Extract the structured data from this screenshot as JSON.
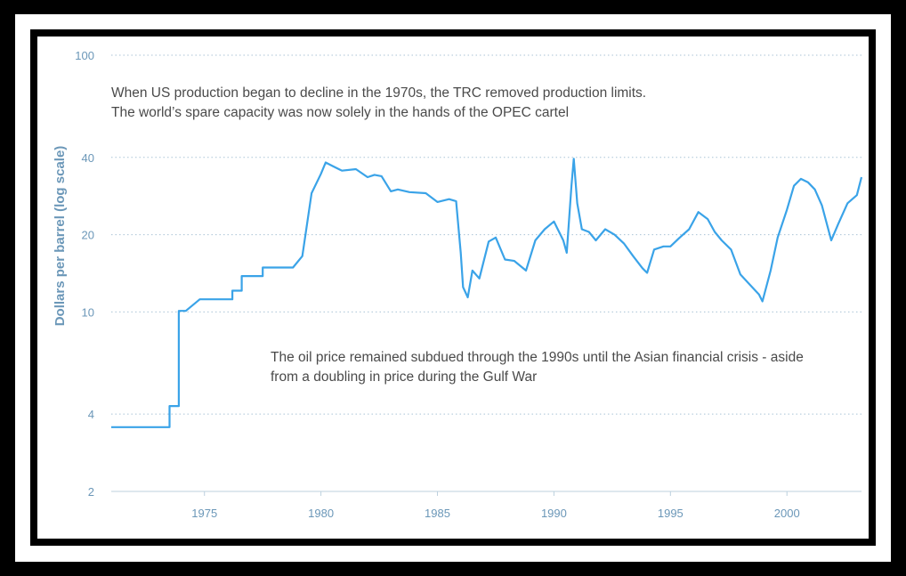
{
  "chart_data": {
    "type": "line",
    "title": "",
    "xlabel": "",
    "ylabel": "Dollars per barrel (log scale)",
    "y_scale": "log",
    "ylim": [
      2,
      100
    ],
    "xlim": [
      1971,
      2003.2
    ],
    "y_ticks": [
      2,
      4,
      10,
      20,
      40,
      100
    ],
    "x_ticks": [
      1975,
      1980,
      1985,
      1990,
      1995,
      2000
    ],
    "grid": "horizontal dotted",
    "line_color": "#3aa3e8",
    "axis_text_color": "#6b97b8",
    "series": [
      {
        "name": "",
        "x": [
          1971.0,
          1973.5,
          1973.5,
          1973.9,
          1973.9,
          1974.2,
          1974.8,
          1974.8,
          1976.2,
          1976.2,
          1976.6,
          1976.6,
          1977.5,
          1977.5,
          1978.8,
          1979.2,
          1979.6,
          1980.0,
          1980.2,
          1980.5,
          1980.9,
          1981.5,
          1982.0,
          1982.3,
          1982.6,
          1983.0,
          1983.3,
          1983.8,
          1984.5,
          1985.0,
          1985.5,
          1985.8,
          1986.0,
          1986.1,
          1986.3,
          1986.5,
          1986.8,
          1987.2,
          1987.5,
          1987.9,
          1988.3,
          1988.8,
          1989.2,
          1989.6,
          1990.0,
          1990.4,
          1990.55,
          1990.75,
          1990.85,
          1991.0,
          1991.2,
          1991.5,
          1991.8,
          1992.2,
          1992.6,
          1993.0,
          1993.4,
          1993.8,
          1994.0,
          1994.3,
          1994.7,
          1995.0,
          1995.4,
          1995.8,
          1996.2,
          1996.6,
          1996.9,
          1997.2,
          1997.6,
          1998.0,
          1998.4,
          1998.8,
          1998.95,
          1999.3,
          1999.6,
          2000.0,
          2000.3,
          2000.6,
          2000.9,
          2001.2,
          2001.5,
          2001.9,
          2002.2,
          2002.6,
          2003.0,
          2003.2
        ],
        "values": [
          3.56,
          3.56,
          4.3,
          4.3,
          10.1,
          10.1,
          11.2,
          11.2,
          11.2,
          12.1,
          12.1,
          13.8,
          13.8,
          14.9,
          14.9,
          16.5,
          29.0,
          34.5,
          38.2,
          37.0,
          35.5,
          36.0,
          33.5,
          34.2,
          33.8,
          29.5,
          30.0,
          29.3,
          29.0,
          26.8,
          27.5,
          27.0,
          17.0,
          12.5,
          11.4,
          14.5,
          13.5,
          18.8,
          19.5,
          16.0,
          15.8,
          14.5,
          19.0,
          21.0,
          22.5,
          19.0,
          17.0,
          31.0,
          39.5,
          26.5,
          21.0,
          20.5,
          19.0,
          21.0,
          20.0,
          18.5,
          16.5,
          14.8,
          14.2,
          17.5,
          18.0,
          18.0,
          19.5,
          21.0,
          24.5,
          23.0,
          20.5,
          19.0,
          17.5,
          14.0,
          12.8,
          11.7,
          11.0,
          14.5,
          19.5,
          25.0,
          31.0,
          33.0,
          32.0,
          30.0,
          26.0,
          19.0,
          22.0,
          26.5,
          28.5,
          33.5
        ]
      }
    ],
    "annotations": [
      {
        "lines": [
          "When US production began to decline in the 1970s, the TRC removed production limits.",
          "The world’s spare capacity was now solely in the hands of the OPEC cartel"
        ]
      },
      {
        "lines": [
          "The oil price remained subdued through the 1990s until the Asian financial crisis - aside",
          "from a doubling in price during the Gulf War"
        ]
      }
    ]
  }
}
